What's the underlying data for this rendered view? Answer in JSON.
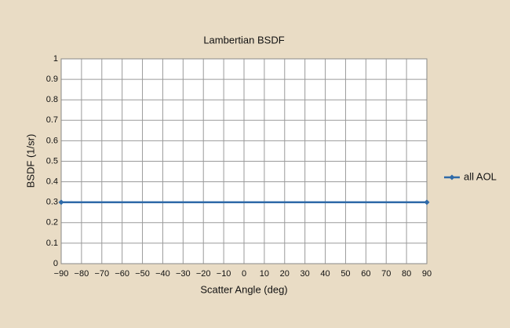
{
  "chart_data": {
    "type": "line",
    "title": "Lambertian BSDF",
    "x_label": "Scatter Angle (deg)",
    "y_label": "BSDF (1/sr)",
    "x": [
      -90,
      90
    ],
    "series": [
      {
        "name": "all AOL",
        "color": "#2f6aa8",
        "values": [
          0.3,
          0.3
        ]
      }
    ],
    "xlim": [
      -90,
      90
    ],
    "xticks": [
      {
        "value": -90,
        "label": "−90"
      },
      {
        "value": -80,
        "label": "−80"
      },
      {
        "value": -70,
        "label": "−70"
      },
      {
        "value": -60,
        "label": "−60"
      },
      {
        "value": -50,
        "label": "−50"
      },
      {
        "value": -40,
        "label": "−40"
      },
      {
        "value": -30,
        "label": "−30"
      },
      {
        "value": -20,
        "label": "−20"
      },
      {
        "value": -10,
        "label": "−10"
      },
      0,
      10,
      20,
      30,
      40,
      50,
      60,
      70,
      80,
      90
    ],
    "ylim": [
      0,
      1
    ],
    "yticks": [
      0,
      0.1,
      0.2,
      0.3,
      0.4,
      0.5,
      0.6,
      0.7,
      0.8,
      0.9,
      1
    ],
    "grid": true,
    "legend": "right"
  }
}
